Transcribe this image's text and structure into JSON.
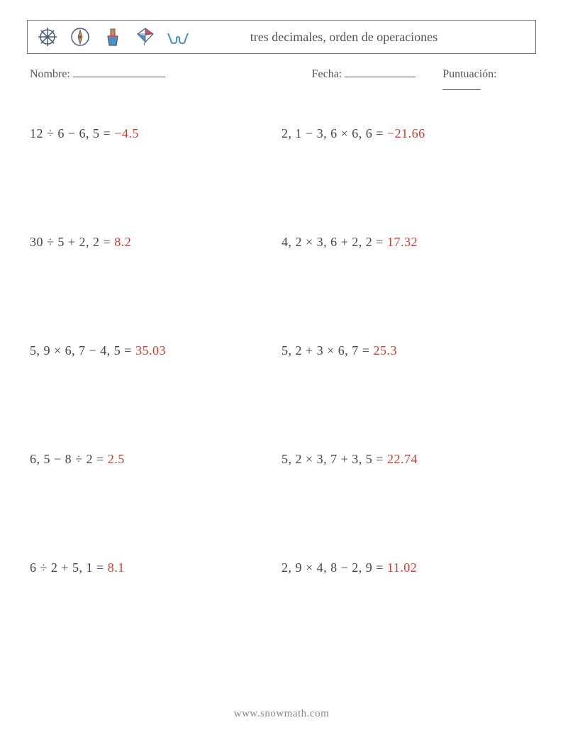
{
  "header": {
    "title": "tres decimales, orden de operaciones",
    "icons": [
      "wheel-icon",
      "compass-icon",
      "bucket-icon",
      "kite-icon",
      "glasses-icon"
    ]
  },
  "info": {
    "name_label": "Nombre:",
    "date_label": "Fecha:",
    "score_label": "Puntuación:"
  },
  "problems": [
    {
      "expr": "12 ÷ 6 − 6, 5 = ",
      "answer": "−4.5"
    },
    {
      "expr": "2, 1 − 3, 6 × 6, 6 = ",
      "answer": "−21.66"
    },
    {
      "expr": "30 ÷ 5 + 2, 2 = ",
      "answer": "8.2"
    },
    {
      "expr": "4, 2 × 3, 6 + 2, 2 = ",
      "answer": "17.32"
    },
    {
      "expr": "5, 9 × 6, 7 − 4, 5 = ",
      "answer": "35.03"
    },
    {
      "expr": "5, 2 + 3 × 6, 7 = ",
      "answer": "25.3"
    },
    {
      "expr": "6, 5 − 8 ÷ 2 = ",
      "answer": "2.5"
    },
    {
      "expr": "5, 2 × 3, 7 + 3, 5 = ",
      "answer": "22.74"
    },
    {
      "expr": "6 ÷ 2 + 5, 1 = ",
      "answer": "8.1"
    },
    {
      "expr": "2, 9 × 4, 8 − 2, 9 = ",
      "answer": "11.02"
    }
  ],
  "footer": "www.snowmath.com",
  "colors": {
    "text": "#555555",
    "answer": "#d23a2e",
    "border": "#777777",
    "icon_outline": "#4a5a74",
    "icon_accent1": "#d28a3a",
    "icon_accent2": "#4a8fc5",
    "icon_accent3": "#d24a6a"
  }
}
